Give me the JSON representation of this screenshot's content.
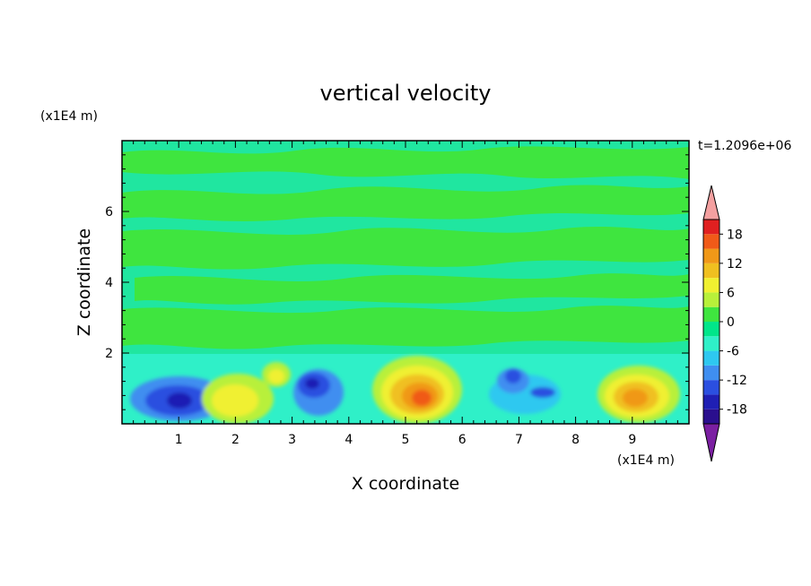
{
  "chart_data": {
    "type": "heatmap",
    "title": "vertical velocity",
    "xlabel": "X coordinate",
    "ylabel": "Z coordinate",
    "x_unit": "(x1E4 m)",
    "y_unit": "(x1E4 m)",
    "time_label": "t=1.2096e+06",
    "xlim": [
      0,
      10
    ],
    "ylim": [
      0,
      8
    ],
    "x_ticks": [
      "1",
      "2",
      "3",
      "4",
      "5",
      "6",
      "7",
      "8",
      "9"
    ],
    "y_ticks": [
      "2",
      "4",
      "6"
    ],
    "colorbar": {
      "ticks": [
        "18",
        "12",
        "6",
        "0",
        "-6",
        "-12",
        "-18"
      ],
      "levels": [
        -21,
        -18,
        -15,
        -12,
        -9,
        -6,
        -3,
        0,
        3,
        6,
        9,
        12,
        15,
        18,
        21
      ],
      "colors": [
        "#7b1fa2",
        "#2a0f8e",
        "#1f1fb4",
        "#2b4fe0",
        "#3f8ef0",
        "#2ec8f0",
        "#2ff0c8",
        "#00e68a",
        "#3fe53f",
        "#b8f03a",
        "#f0f030",
        "#f0c020",
        "#f09818",
        "#f05a18",
        "#e02020",
        "#f4a0a0"
      ]
    },
    "features": [
      {
        "x": 1.0,
        "z": 0.7,
        "value": -12
      },
      {
        "x": 2.1,
        "z": 0.7,
        "value": 9
      },
      {
        "x": 2.8,
        "z": 1.3,
        "value": 6
      },
      {
        "x": 3.4,
        "z": 1.1,
        "value": -12
      },
      {
        "x": 5.3,
        "z": 0.8,
        "value": 18
      },
      {
        "x": 6.9,
        "z": 1.2,
        "value": -12
      },
      {
        "x": 9.0,
        "z": 0.7,
        "value": 15
      }
    ]
  }
}
